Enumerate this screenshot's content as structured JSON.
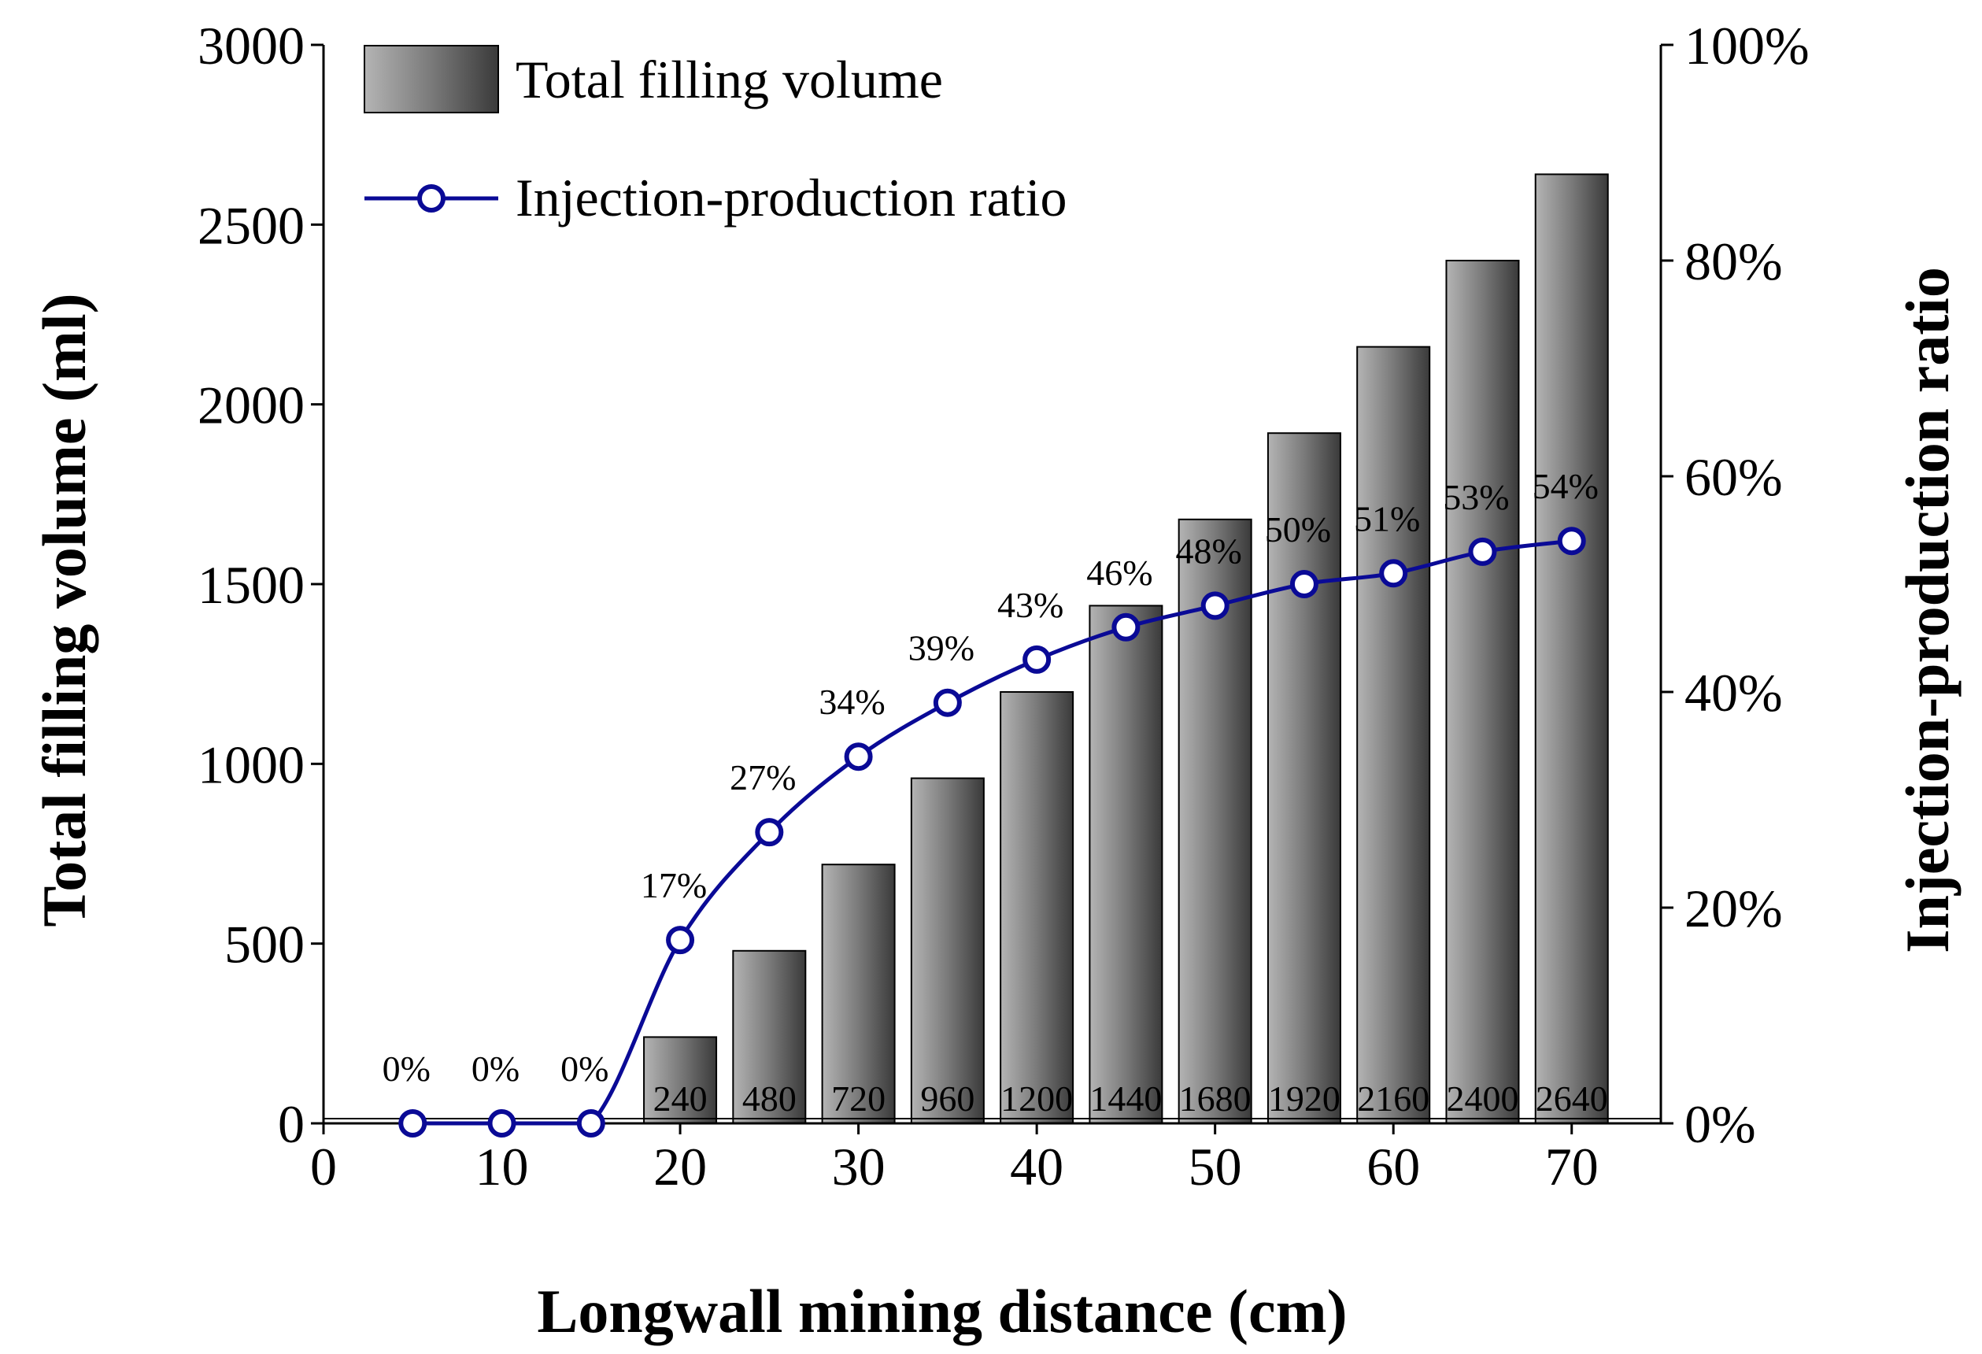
{
  "chart_data": {
    "type": "bar+line",
    "xlabel": "Longwall mining distance (cm)",
    "ylabel_left": "Total filling volume (ml)",
    "ylabel_right": "Injection-production ratio",
    "xlim": [
      0,
      75
    ],
    "xticks": [
      0,
      10,
      20,
      30,
      40,
      50,
      60,
      70
    ],
    "ylim_left": [
      0,
      3000
    ],
    "yticks_left": [
      0,
      500,
      1000,
      1500,
      2000,
      2500,
      3000
    ],
    "ylim_right": [
      0,
      100
    ],
    "yticks_right": [
      "0%",
      "20%",
      "40%",
      "60%",
      "80%",
      "100%"
    ],
    "yticks_right_values": [
      0,
      20,
      40,
      60,
      80,
      100
    ],
    "legend": {
      "position": "top-left",
      "bars_label": "Total filling volume",
      "line_label": "Injection-production ratio"
    },
    "bars": {
      "name": "Total filling volume",
      "x": [
        20,
        25,
        30,
        35,
        40,
        45,
        50,
        55,
        60,
        65,
        70
      ],
      "values": [
        240,
        480,
        720,
        960,
        1200,
        1440,
        1680,
        1920,
        2160,
        2400,
        2640
      ],
      "labels": [
        "240",
        "480",
        "720",
        "960",
        "1200",
        "1440",
        "1680",
        "1920",
        "2160",
        "2400",
        "2640"
      ]
    },
    "line": {
      "name": "Injection-production ratio",
      "x": [
        5,
        10,
        15,
        20,
        25,
        30,
        35,
        40,
        45,
        50,
        55,
        60,
        65,
        70
      ],
      "values": [
        0,
        0,
        0,
        17,
        27,
        34,
        39,
        43,
        46,
        48,
        50,
        51,
        53,
        54
      ],
      "labels": [
        "0%",
        "0%",
        "0%",
        "17%",
        "27%",
        "34%",
        "39%",
        "43%",
        "46%",
        "48%",
        "50%",
        "51%",
        "53%",
        "54%"
      ]
    },
    "colors": {
      "line": "#0a0a96",
      "marker_fill": "#ffffff",
      "bar_light": "#b4b4b4",
      "bar_mid": "#7a7a7a",
      "bar_dark": "#3a3a3a",
      "axis": "#000000"
    }
  }
}
